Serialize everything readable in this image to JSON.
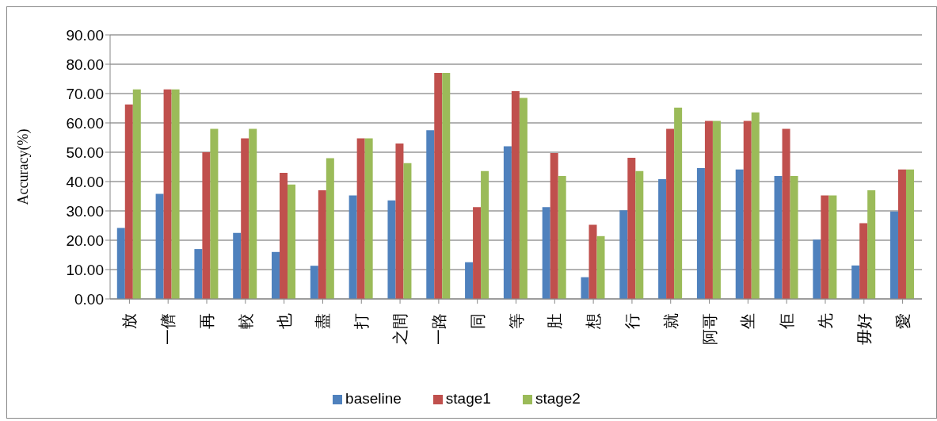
{
  "chart_data": {
    "type": "bar",
    "ylabel": "Accuracy(%)",
    "categories": [
      "放",
      "一儕",
      "再",
      "較",
      "也",
      "盡",
      "打",
      "之間",
      "一路",
      "同",
      "等",
      "肚",
      "想",
      "行",
      "就",
      "阿哥",
      "坐",
      "佢",
      "先",
      "毋好",
      "愛"
    ],
    "series": [
      {
        "name": "baseline",
        "color": "#4f81bd",
        "values": [
          24.2,
          35.8,
          17,
          22.5,
          16,
          11.3,
          35.3,
          33.6,
          57.5,
          12.5,
          52,
          31.3,
          7.4,
          30.2,
          40.8,
          44.6,
          44.1,
          41.9,
          20.2,
          11.4,
          29.8
        ]
      },
      {
        "name": "stage1",
        "color": "#c0504d",
        "values": [
          66.3,
          71.4,
          50,
          54.7,
          43,
          37,
          54.7,
          53,
          77,
          31.3,
          70.8,
          49.7,
          25.3,
          48.1,
          58,
          60.7,
          60.7,
          58,
          35.3,
          25.8,
          44.1
        ]
      },
      {
        "name": "stage2",
        "color": "#9bbb59",
        "values": [
          71.4,
          71.4,
          58,
          58,
          39,
          48,
          54.7,
          46.3,
          77,
          43.6,
          68.5,
          41.9,
          21.4,
          43.6,
          65.2,
          60.7,
          63.6,
          41.9,
          35.3,
          37,
          44.1
        ]
      }
    ],
    "ylim": [
      0,
      90
    ],
    "yticks": [
      {
        "value": 0,
        "label": "0.00"
      },
      {
        "value": 10,
        "label": "10.00"
      },
      {
        "value": 20,
        "label": "20.00"
      },
      {
        "value": 30,
        "label": "30.00"
      },
      {
        "value": 40,
        "label": "40.00"
      },
      {
        "value": 50,
        "label": "50.00"
      },
      {
        "value": 60,
        "label": "60.00"
      },
      {
        "value": 70,
        "label": "70.00"
      },
      {
        "value": 80,
        "label": "80.00"
      },
      {
        "value": 90,
        "label": "90.00"
      }
    ],
    "grid": "y",
    "legend": "bottom"
  }
}
